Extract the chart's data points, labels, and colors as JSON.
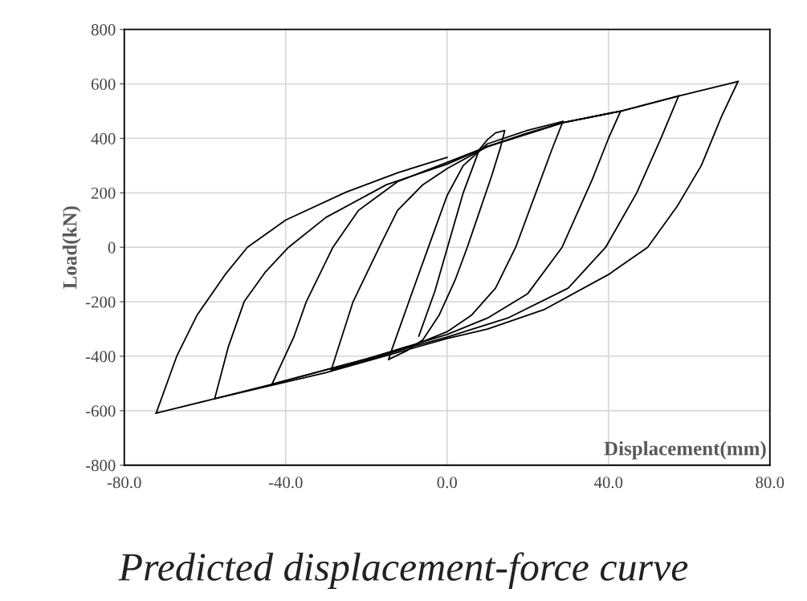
{
  "chart_data": {
    "type": "line",
    "title": "Predicted displacement-force curve",
    "xlabel": "Displacement(mm)",
    "ylabel": "Load(kN)",
    "xlim": [
      -80,
      80
    ],
    "ylim": [
      -800,
      800
    ],
    "xticks": [
      {
        "value": -80,
        "label": "-80.0"
      },
      {
        "value": -40,
        "label": "-40.0"
      },
      {
        "value": 0,
        "label": "0.0"
      },
      {
        "value": 40,
        "label": "40.0"
      },
      {
        "value": 80,
        "label": "80.0"
      }
    ],
    "yticks": [
      -800,
      -600,
      -400,
      -200,
      0,
      200,
      400,
      600,
      800
    ],
    "grid": true,
    "marker": "none",
    "line_style": "solid",
    "series": [
      {
        "color": "#000000",
        "x": [
          -7,
          -3,
          0.6,
          4,
          8,
          10,
          12,
          14.3,
          13.3,
          11,
          8,
          5,
          2,
          -2,
          -6,
          -10,
          -14.5
        ],
        "values": [
          -326,
          -160,
          26,
          200,
          359,
          395,
          420,
          429,
          370,
          260,
          130,
          0,
          -120,
          -250,
          -340,
          -380,
          -412
        ]
      },
      {
        "color": "#000000",
        "x": [
          -14.5,
          -13.7,
          -9,
          -4,
          0,
          4,
          10,
          20,
          28.7
        ],
        "values": [
          -412,
          -376,
          -180,
          26,
          190,
          300,
          380,
          430,
          462
        ]
      },
      {
        "color": "#000000",
        "x": [
          28.7,
          26,
          22,
          17,
          12,
          6,
          0,
          -10,
          -20,
          -28.7
        ],
        "values": [
          462,
          360,
          200,
          0,
          -150,
          -250,
          -310,
          -370,
          -415,
          -450
        ]
      },
      {
        "color": "#000000",
        "x": [
          -28.7,
          -23.3,
          -16.8,
          -12.3,
          -6,
          0.2,
          10,
          20,
          28.7,
          43
        ],
        "values": [
          -450,
          -200,
          0,
          135,
          230,
          291,
          370,
          420,
          458,
          500
        ]
      },
      {
        "color": "#000000",
        "x": [
          43,
          40,
          36,
          28.5,
          20,
          10,
          0,
          -20,
          -43.4
        ],
        "values": [
          500,
          400,
          250,
          0,
          -170,
          -260,
          -320,
          -410,
          -503
        ]
      },
      {
        "color": "#000000",
        "x": [
          -43.4,
          -38,
          -34.9,
          -28.3,
          -22,
          -12.3,
          0,
          10,
          28.7,
          43,
          57.4
        ],
        "values": [
          -503,
          -330,
          -200,
          0,
          135,
          241,
          312,
          370,
          458,
          500,
          556
        ]
      },
      {
        "color": "#000000",
        "x": [
          57.4,
          53,
          47,
          39.3,
          30,
          15,
          0,
          -30,
          -43.4,
          -57.6
        ],
        "values": [
          556,
          400,
          200,
          0,
          -150,
          -260,
          -330,
          -450,
          -503,
          -556
        ]
      },
      {
        "color": "#000000",
        "x": [
          -57.6,
          -54.2,
          -50.3,
          -45,
          -39.3,
          -30,
          -15,
          0,
          10,
          28.7,
          43,
          57.4,
          72.1
        ],
        "values": [
          -556,
          -365,
          -200,
          -90,
          0,
          110,
          230,
          305,
          370,
          458,
          500,
          556,
          609
        ]
      },
      {
        "color": "#000000",
        "x": [
          72.1,
          68,
          63,
          57,
          49.7,
          40,
          24,
          10,
          0,
          -30,
          -57.6,
          -72.1
        ],
        "values": [
          609,
          480,
          300,
          150,
          0,
          -100,
          -229,
          -300,
          -335,
          -460,
          -556,
          -609
        ]
      },
      {
        "color": "#000000",
        "x": [
          -72.1,
          -67,
          -62,
          -55,
          -49.5,
          -40,
          -25,
          -12,
          0
        ],
        "values": [
          -609,
          -400,
          -250,
          -100,
          0,
          100,
          203,
          275,
          330
        ]
      }
    ]
  }
}
